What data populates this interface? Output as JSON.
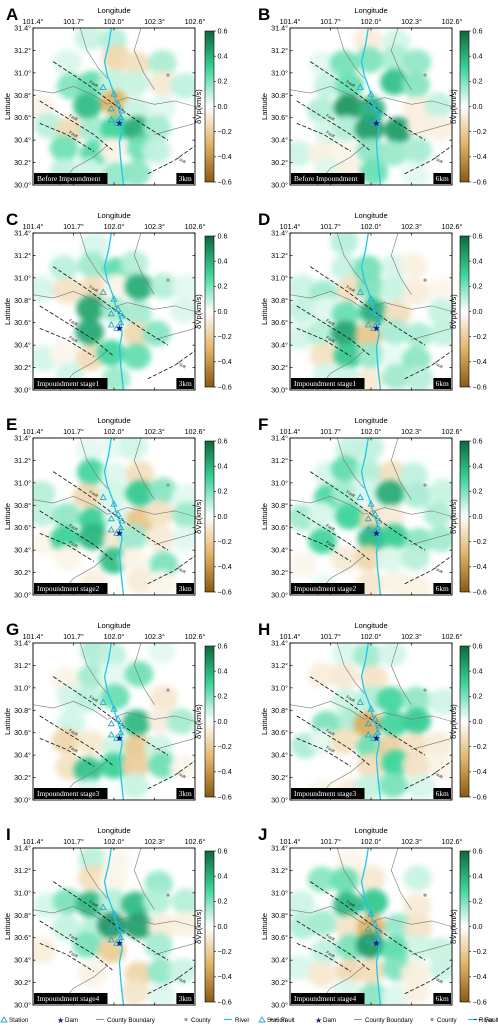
{
  "figure": {
    "x_axis_label": "Longitude",
    "y_axis_label": "Latitude",
    "colorbar_label": "δVp(km/s)",
    "fault_names": [
      "Fault",
      "Fault",
      "Fault",
      "Fault"
    ]
  },
  "colors": {
    "scale_negative": "#8a5a14",
    "scale_mid_negative": "#e0b466",
    "scale_zero": "#ffffff",
    "scale_mid_positive": "#3bd49a",
    "scale_positive": "#0b6a3a",
    "river": "#1ec8e8",
    "station": "#2aa7c7",
    "dam": "#1a1a8c",
    "county": "#999999",
    "fault": "#111111",
    "boundary": "#777777"
  },
  "legend": {
    "items": [
      {
        "symbol": "station",
        "label": "Station"
      },
      {
        "symbol": "dam",
        "label": "Dam"
      },
      {
        "symbol": "boundary",
        "label": "County Boundary"
      },
      {
        "symbol": "county",
        "label": "County"
      },
      {
        "symbol": "river",
        "label": "River"
      },
      {
        "symbol": "fault",
        "label": "Fault"
      }
    ]
  },
  "chart_data": [
    {
      "panel": "A",
      "type": "heatmap",
      "title": "Before Impoundment",
      "depth": "3km",
      "seed": 11,
      "pos_bias": 0.35
    },
    {
      "panel": "B",
      "type": "heatmap",
      "title": "Before Impoundment",
      "depth": "6km",
      "seed": 23,
      "pos_bias": 0.45
    },
    {
      "panel": "C",
      "type": "heatmap",
      "title": "Impoundment stage1",
      "depth": "3km",
      "seed": 37,
      "pos_bias": 0.4
    },
    {
      "panel": "D",
      "type": "heatmap",
      "title": "Impoundment stage1",
      "depth": "6km",
      "seed": 41,
      "pos_bias": 0.5
    },
    {
      "panel": "E",
      "type": "heatmap",
      "title": "Impoundment stage2",
      "depth": "3km",
      "seed": 53,
      "pos_bias": 0.5
    },
    {
      "panel": "F",
      "type": "heatmap",
      "title": "Impoundment stage2",
      "depth": "6km",
      "seed": 67,
      "pos_bias": 0.55
    },
    {
      "panel": "G",
      "type": "heatmap",
      "title": "Impoundment stage3",
      "depth": "3km",
      "seed": 71,
      "pos_bias": 0.4
    },
    {
      "panel": "H",
      "type": "heatmap",
      "title": "Impoundment stage3",
      "depth": "6km",
      "seed": 83,
      "pos_bias": 0.45
    },
    {
      "panel": "I",
      "type": "heatmap",
      "title": "Impoundment stage4",
      "depth": "3km",
      "seed": 97,
      "pos_bias": 0.5
    },
    {
      "panel": "J",
      "type": "heatmap",
      "title": "Impoundment stage4",
      "depth": "6km",
      "seed": 101,
      "pos_bias": 0.55
    }
  ],
  "axes": {
    "x_ticks": [
      "101.4°",
      "101.7°",
      "102.0°",
      "102.3°",
      "102.6°"
    ],
    "x_tick_values": [
      101.4,
      101.7,
      102.0,
      102.3,
      102.6
    ],
    "y_ticks": [
      "31.4°",
      "31.2°",
      "31.0°",
      "30.8°",
      "30.6°",
      "30.4°",
      "30.2°",
      "30.0°"
    ],
    "y_tick_values": [
      31.4,
      31.2,
      31.0,
      30.8,
      30.6,
      30.4,
      30.2,
      30.0
    ],
    "xlim": [
      101.4,
      102.6
    ],
    "ylim": [
      30.0,
      31.4
    ],
    "colorbar_ticks": [
      "0.6",
      "0.4",
      "0.2",
      "0.0",
      "−0.2",
      "−0.4",
      "−0.6"
    ],
    "colorbar_values": [
      0.6,
      0.4,
      0.2,
      0.0,
      -0.2,
      -0.4,
      -0.6
    ],
    "clim": [
      -0.6,
      0.6
    ]
  },
  "map": {
    "river": [
      [
        101.98,
        31.4
      ],
      [
        101.96,
        31.25
      ],
      [
        101.93,
        31.1
      ],
      [
        101.95,
        30.98
      ],
      [
        101.99,
        30.85
      ],
      [
        102.02,
        30.72
      ],
      [
        102.05,
        30.62
      ],
      [
        102.06,
        30.5
      ],
      [
        102.04,
        30.38
      ],
      [
        102.05,
        30.22
      ],
      [
        102.07,
        30.0
      ]
    ],
    "stations": [
      [
        101.92,
        30.87
      ],
      [
        102.0,
        30.81
      ],
      [
        102.03,
        30.72
      ],
      [
        101.98,
        30.68
      ],
      [
        102.06,
        30.66
      ],
      [
        102.05,
        30.6
      ],
      [
        101.98,
        30.58
      ],
      [
        102.02,
        30.55
      ]
    ],
    "dam": [
      102.04,
      30.55
    ],
    "county": [
      102.4,
      30.98
    ],
    "faults": [
      [
        [
          101.55,
          31.1
        ],
        [
          101.8,
          30.9
        ],
        [
          102.0,
          30.72
        ],
        [
          102.2,
          30.55
        ],
        [
          102.4,
          30.4
        ]
      ],
      [
        [
          101.45,
          30.75
        ],
        [
          101.65,
          30.6
        ],
        [
          101.85,
          30.45
        ],
        [
          102.0,
          30.3
        ]
      ],
      [
        [
          101.45,
          30.55
        ],
        [
          101.65,
          30.45
        ],
        [
          101.85,
          30.3
        ]
      ],
      [
        [
          102.25,
          30.1
        ],
        [
          102.45,
          30.22
        ],
        [
          102.6,
          30.35
        ]
      ]
    ],
    "boundaries": [
      [
        [
          101.4,
          30.85
        ],
        [
          101.55,
          30.82
        ],
        [
          101.7,
          30.88
        ],
        [
          101.85,
          30.8
        ],
        [
          101.95,
          30.72
        ]
      ],
      [
        [
          101.95,
          30.72
        ],
        [
          102.1,
          30.78
        ],
        [
          102.3,
          30.72
        ],
        [
          102.45,
          30.75
        ],
        [
          102.6,
          30.7
        ]
      ],
      [
        [
          101.75,
          31.4
        ],
        [
          101.8,
          31.2
        ],
        [
          101.88,
          31.05
        ],
        [
          101.95,
          30.95
        ]
      ],
      [
        [
          102.2,
          31.4
        ],
        [
          102.15,
          31.2
        ],
        [
          102.22,
          31.0
        ],
        [
          102.3,
          30.85
        ]
      ],
      [
        [
          101.6,
          30.0
        ],
        [
          101.7,
          30.15
        ],
        [
          101.85,
          30.25
        ],
        [
          101.95,
          30.35
        ]
      ],
      [
        [
          102.6,
          30.55
        ],
        [
          102.45,
          30.5
        ],
        [
          102.3,
          30.45
        ]
      ]
    ]
  }
}
